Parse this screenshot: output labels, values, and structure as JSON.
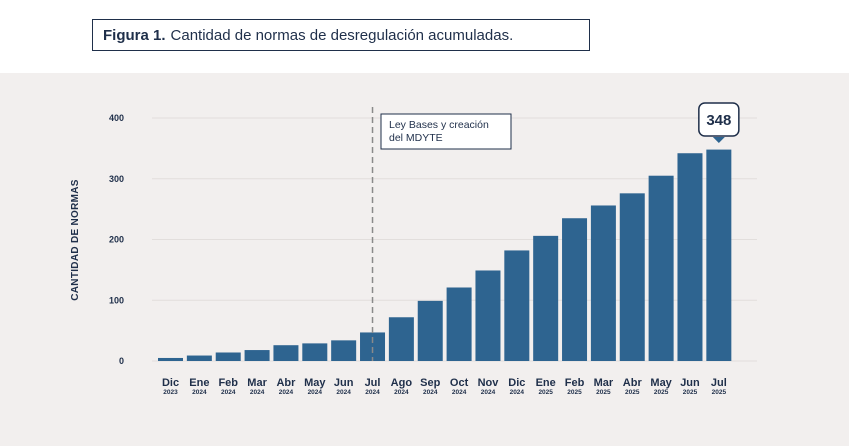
{
  "figure": {
    "label": "Figura 1.",
    "title": "Cantidad de normas de desregulación acumuladas."
  },
  "colors": {
    "bar": "#2e6490",
    "panel": "#f2efee",
    "text": "#1f2f4a",
    "grid": "#e2dedc",
    "dashed": "#8a8a8a"
  },
  "chart_data": {
    "type": "bar",
    "ylabel": "CANTIDAD DE NORMAS",
    "ylim": [
      0,
      400
    ],
    "yticks": [
      0,
      100,
      200,
      300,
      400
    ],
    "grid": true,
    "categories": [
      {
        "month": "Dic",
        "year": "2023"
      },
      {
        "month": "Ene",
        "year": "2024"
      },
      {
        "month": "Feb",
        "year": "2024"
      },
      {
        "month": "Mar",
        "year": "2024"
      },
      {
        "month": "Abr",
        "year": "2024"
      },
      {
        "month": "May",
        "year": "2024"
      },
      {
        "month": "Jun",
        "year": "2024"
      },
      {
        "month": "Jul",
        "year": "2024"
      },
      {
        "month": "Ago",
        "year": "2024"
      },
      {
        "month": "Sep",
        "year": "2024"
      },
      {
        "month": "Oct",
        "year": "2024"
      },
      {
        "month": "Nov",
        "year": "2024"
      },
      {
        "month": "Dic",
        "year": "2024"
      },
      {
        "month": "Ene",
        "year": "2025"
      },
      {
        "month": "Feb",
        "year": "2025"
      },
      {
        "month": "Mar",
        "year": "2025"
      },
      {
        "month": "Abr",
        "year": "2025"
      },
      {
        "month": "May",
        "year": "2025"
      },
      {
        "month": "Jun",
        "year": "2025"
      },
      {
        "month": "Jul",
        "year": "2025"
      }
    ],
    "values": [
      5,
      9,
      14,
      18,
      26,
      29,
      34,
      47,
      72,
      99,
      121,
      149,
      182,
      206,
      235,
      256,
      276,
      305,
      342,
      348
    ],
    "annotations": [
      {
        "type": "vline",
        "category_index": 7,
        "text_lines": [
          "Ley Bases y creación",
          "del MDYTE"
        ]
      },
      {
        "type": "callout",
        "category_index": 19,
        "text": "348"
      }
    ]
  }
}
